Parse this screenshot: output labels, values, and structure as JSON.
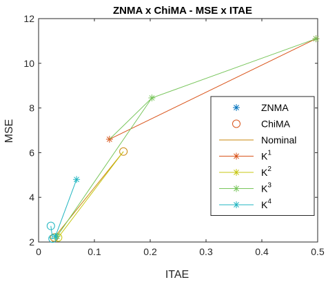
{
  "chart_data": {
    "type": "line",
    "title": "ZNMA x ChiMA - MSE  x ITAE",
    "xlabel": "ITAE",
    "ylabel": "MSE",
    "xlim": [
      0,
      0.5
    ],
    "ylim": [
      2,
      12
    ],
    "xticks": [
      "0",
      "0.1",
      "0.2",
      "0.3",
      "0.4",
      "0.5"
    ],
    "yticks": [
      "2",
      "4",
      "6",
      "8",
      "10",
      "12"
    ],
    "grid": false,
    "legend_position": "right",
    "legend": [
      {
        "label": "ZNMA",
        "kind": "marker",
        "marker": "asterisk",
        "color": "#0072BD"
      },
      {
        "label": "ChiMA",
        "kind": "marker",
        "marker": "circle",
        "color": "#D95319"
      },
      {
        "label": "Nominal",
        "kind": "line",
        "color": "#C8860A"
      },
      {
        "label": "K",
        "sup": "1",
        "kind": "line-marker",
        "marker": "asterisk",
        "color": "#D95319"
      },
      {
        "label": "K",
        "sup": "2",
        "kind": "line-marker",
        "marker": "asterisk",
        "color": "#C7C712"
      },
      {
        "label": "K",
        "sup": "3",
        "kind": "line-marker",
        "marker": "asterisk",
        "color": "#77C55A"
      },
      {
        "label": "K",
        "sup": "4",
        "kind": "line-marker",
        "marker": "asterisk",
        "color": "#1FB5C0"
      }
    ],
    "series": [
      {
        "color": "#D95319",
        "x": [
          0.497,
          0.127
        ],
        "y": [
          11.1,
          6.6
        ],
        "markers": [
          "asterisk",
          "asterisk"
        ]
      },
      {
        "color": "#C8860A",
        "x": [
          0.152,
          0.028
        ],
        "y": [
          6.05,
          2.2
        ],
        "markers": [
          "circle",
          "circle"
        ]
      },
      {
        "color": "#C7C712",
        "x": [
          0.152,
          0.035
        ],
        "y": [
          6.05,
          2.2
        ],
        "markers": [
          "none",
          "circle"
        ]
      },
      {
        "color": "#77C55A",
        "x": [
          0.497,
          0.203,
          0.127
        ],
        "y": [
          11.1,
          8.45,
          6.6
        ],
        "markers": [
          "asterisk",
          "asterisk",
          "none"
        ]
      },
      {
        "color": "#77C55A",
        "x": [
          0.203,
          0.033
        ],
        "y": [
          8.45,
          2.25
        ],
        "markers": [
          "none",
          "asterisk"
        ]
      },
      {
        "color": "#1FB5C0",
        "x": [
          0.068,
          0.03
        ],
        "y": [
          4.8,
          2.25
        ],
        "markers": [
          "asterisk",
          "asterisk"
        ]
      },
      {
        "color": "#1FB5C0",
        "x": [
          0.022,
          0.025,
          0.018
        ],
        "y": [
          2.72,
          2.15,
          2.2
        ],
        "markers": [
          "circle",
          "circle",
          "none"
        ]
      }
    ]
  }
}
